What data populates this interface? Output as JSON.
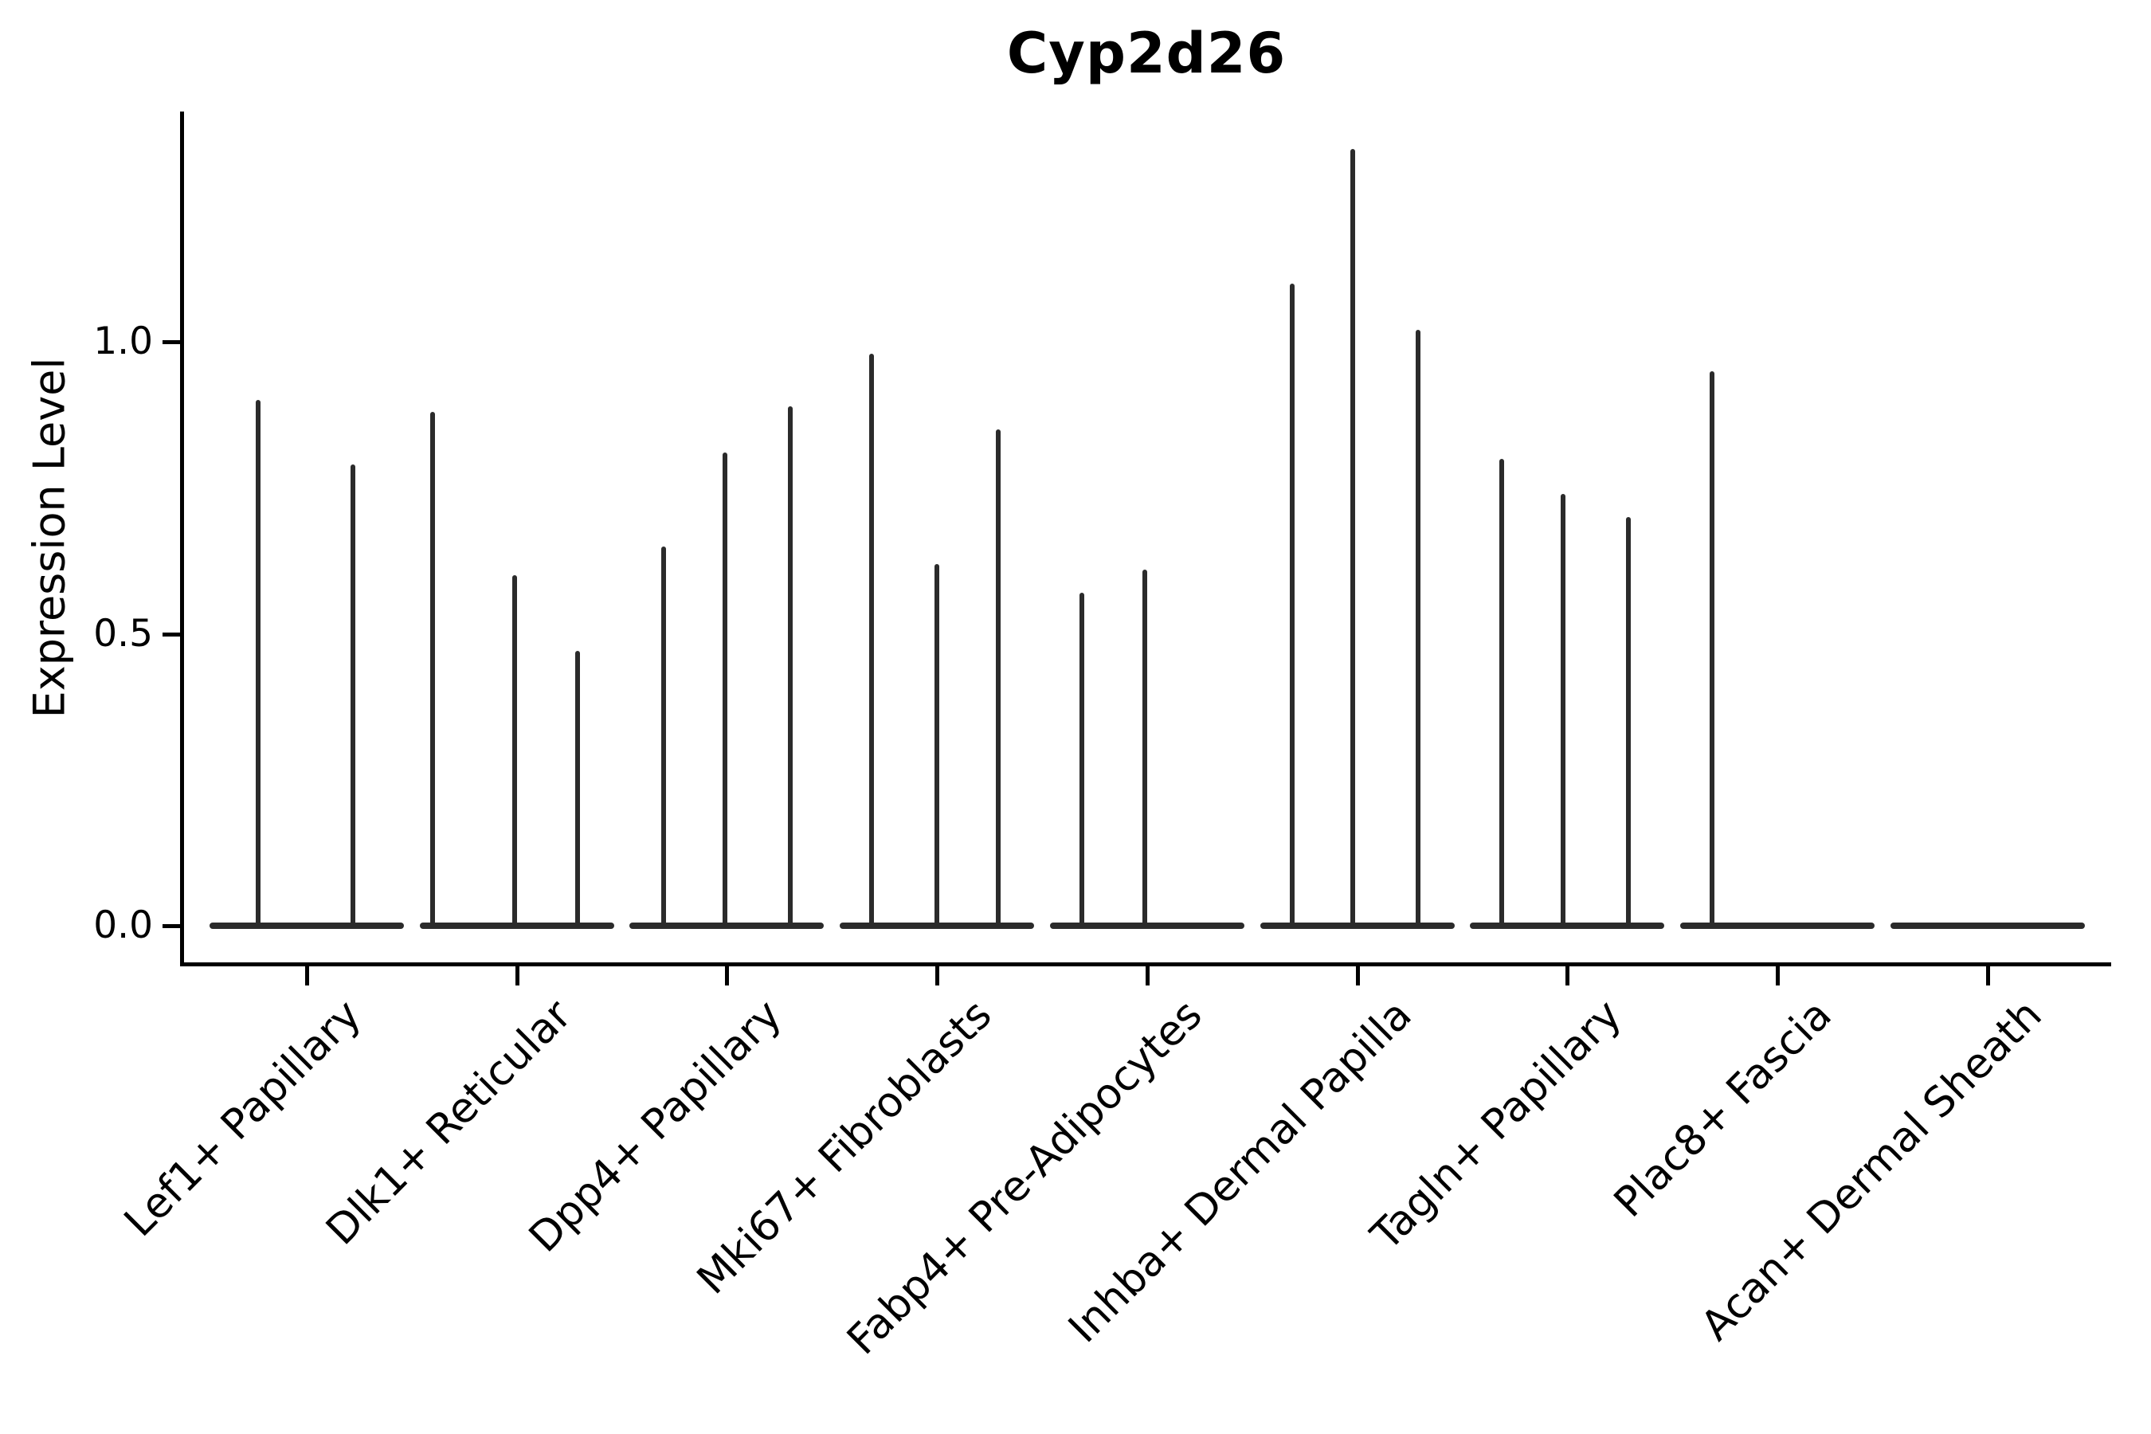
{
  "figure": {
    "title": "Cyp2d26"
  },
  "chart_data": {
    "type": "violin",
    "title": "Cyp2d26",
    "xlabel": "",
    "ylabel": "Expression Level",
    "yticks": [
      0.0,
      0.5,
      1.0
    ],
    "ytick_labels": [
      "0.0",
      "0.5",
      "1.0"
    ],
    "ylim": [
      -0.07,
      1.39
    ],
    "grid": false,
    "legend": "none",
    "description": "Each category shows a violin collapsed to a wide flat line at expression 0 with thin vertical density spikes at the expression levels of the few expressing cells.",
    "categories": [
      "Lef1+ Papillary",
      "Dlk1+ Reticular",
      "Dpp4+ Papillary",
      "Mki67+ Fibroblasts",
      "Fabp4+ Pre-Adipocytes",
      "Inhba+ Dermal Papilla",
      "Tagln+ Papillary",
      "Plac8+ Fascia",
      "Acan+ Dermal Sheath"
    ],
    "violins": [
      {
        "category": "Lef1+ Papillary",
        "zero_line": true,
        "spikes": [
          {
            "x_offset": -0.23,
            "value": 0.9
          },
          {
            "x_offset": 0.22,
            "value": 0.79
          }
        ]
      },
      {
        "category": "Dlk1+ Reticular",
        "zero_line": true,
        "spikes": [
          {
            "x_offset": -0.4,
            "value": 0.88
          },
          {
            "x_offset": -0.01,
            "value": 0.6
          },
          {
            "x_offset": 0.29,
            "value": 0.47
          }
        ]
      },
      {
        "category": "Dpp4+ Papillary",
        "zero_line": true,
        "spikes": [
          {
            "x_offset": -0.3,
            "value": 0.65
          },
          {
            "x_offset": -0.01,
            "value": 0.81
          },
          {
            "x_offset": 0.3,
            "value": 0.89
          }
        ]
      },
      {
        "category": "Mki67+ Fibroblasts",
        "zero_line": true,
        "spikes": [
          {
            "x_offset": -0.31,
            "value": 0.98
          },
          {
            "x_offset": 0.0,
            "value": 0.62
          },
          {
            "x_offset": 0.29,
            "value": 0.85
          }
        ]
      },
      {
        "category": "Fabp4+ Pre-Adipocytes",
        "zero_line": true,
        "spikes": [
          {
            "x_offset": -0.31,
            "value": 0.57
          },
          {
            "x_offset": -0.01,
            "value": 0.61
          }
        ]
      },
      {
        "category": "Inhba+ Dermal Papilla",
        "zero_line": true,
        "spikes": [
          {
            "x_offset": -0.31,
            "value": 1.1
          },
          {
            "x_offset": -0.02,
            "value": 1.33
          },
          {
            "x_offset": 0.29,
            "value": 1.02
          }
        ]
      },
      {
        "category": "Tagln+ Papillary",
        "zero_line": true,
        "spikes": [
          {
            "x_offset": -0.31,
            "value": 0.8
          },
          {
            "x_offset": -0.02,
            "value": 0.74
          },
          {
            "x_offset": 0.29,
            "value": 0.7
          }
        ]
      },
      {
        "category": "Plac8+ Fascia",
        "zero_line": true,
        "spikes": [
          {
            "x_offset": -0.31,
            "value": 0.95
          }
        ]
      },
      {
        "category": "Acan+ Dermal Sheath",
        "zero_line": true,
        "spikes": []
      }
    ],
    "colors": {
      "violin": "#2b2b2b",
      "axis": "#000000",
      "text": "#000000",
      "background": "#ffffff"
    }
  }
}
